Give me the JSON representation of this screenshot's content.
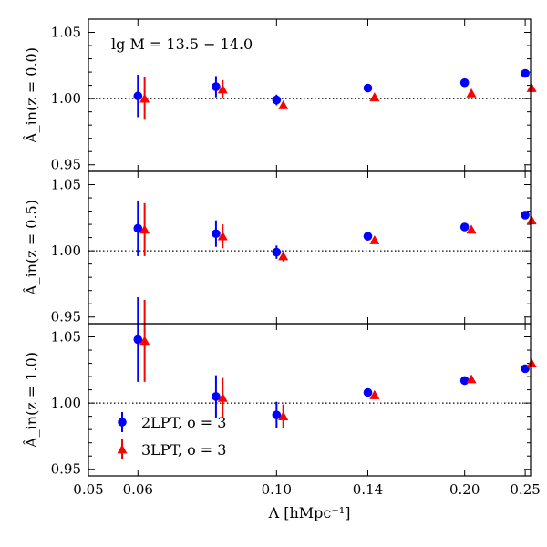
{
  "chart_data": {
    "type": "scatter",
    "annotation": "lg M = 13.5 − 14.0",
    "xlabel": "Λ [hMpc⁻¹]",
    "x_axis": {
      "scale": "log",
      "range": [
        0.05,
        0.255
      ],
      "ticks": [
        0.05,
        0.06,
        0.1,
        0.14,
        0.2,
        0.25
      ],
      "tick_labels": [
        "0.05",
        "0.06",
        "0.10",
        "0.14",
        "0.20",
        "0.25"
      ]
    },
    "y_axis": {
      "range": [
        0.945,
        1.06
      ],
      "ticks": [
        0.95,
        1.0,
        1.05
      ],
      "tick_labels": [
        "0.95",
        "1.00",
        "1.05"
      ],
      "reference_line": 1.0
    },
    "colors": {
      "2lpt": "#0000ff",
      "3lpt": "#ff0000",
      "reference": "#000000"
    },
    "legend": {
      "location": "lower-left",
      "entries": [
        {
          "id": "2lpt",
          "label": "2LPT, o = 3",
          "marker": "circle"
        },
        {
          "id": "3lpt",
          "label": "3LPT, o = 3",
          "marker": "triangle"
        }
      ]
    },
    "panels": [
      {
        "ylabel": "Â_in(z = 0.0)",
        "series": [
          {
            "id": "2lpt",
            "x": [
              0.06,
              0.08,
              0.1,
              0.14,
              0.2,
              0.25
            ],
            "y": [
              1.002,
              1.009,
              0.999,
              1.008,
              1.012,
              1.019
            ],
            "yerr": [
              0.016,
              0.008,
              0.004,
              0.0,
              0.0,
              0.0
            ]
          },
          {
            "id": "3lpt",
            "x": [
              0.0615,
              0.082,
              0.1025,
              0.1435,
              0.205,
              0.256
            ],
            "y": [
              1.0,
              1.007,
              0.995,
              1.001,
              1.004,
              1.008
            ],
            "yerr": [
              0.016,
              0.007,
              0.003,
              0.0,
              0.0,
              0.0
            ]
          }
        ]
      },
      {
        "ylabel": "Â_in(z = 0.5)",
        "series": [
          {
            "id": "2lpt",
            "x": [
              0.06,
              0.08,
              0.1,
              0.14,
              0.2,
              0.25
            ],
            "y": [
              1.017,
              1.013,
              0.999,
              1.011,
              1.018,
              1.027
            ],
            "yerr": [
              0.021,
              0.01,
              0.005,
              0.0,
              0.0,
              0.0
            ]
          },
          {
            "id": "3lpt",
            "x": [
              0.0615,
              0.082,
              0.1025,
              0.1435,
              0.205,
              0.256
            ],
            "y": [
              1.016,
              1.011,
              0.996,
              1.008,
              1.016,
              1.023
            ],
            "yerr": [
              0.02,
              0.009,
              0.004,
              0.0,
              0.0,
              0.0
            ]
          }
        ]
      },
      {
        "ylabel": "Â_in(z = 1.0)",
        "series": [
          {
            "id": "2lpt",
            "x": [
              0.06,
              0.08,
              0.1,
              0.14,
              0.2,
              0.25
            ],
            "y": [
              1.048,
              1.005,
              0.991,
              1.008,
              1.017,
              1.026
            ],
            "yerr": [
              0.032,
              0.016,
              0.01,
              0.003,
              0.0,
              0.0
            ]
          },
          {
            "id": "3lpt",
            "x": [
              0.0615,
              0.082,
              0.1025,
              0.1435,
              0.205,
              0.256
            ],
            "y": [
              1.047,
              1.004,
              0.99,
              1.006,
              1.018,
              1.03
            ],
            "yerr": [
              0.031,
              0.015,
              0.009,
              0.003,
              0.0,
              0.0
            ]
          }
        ]
      }
    ]
  }
}
